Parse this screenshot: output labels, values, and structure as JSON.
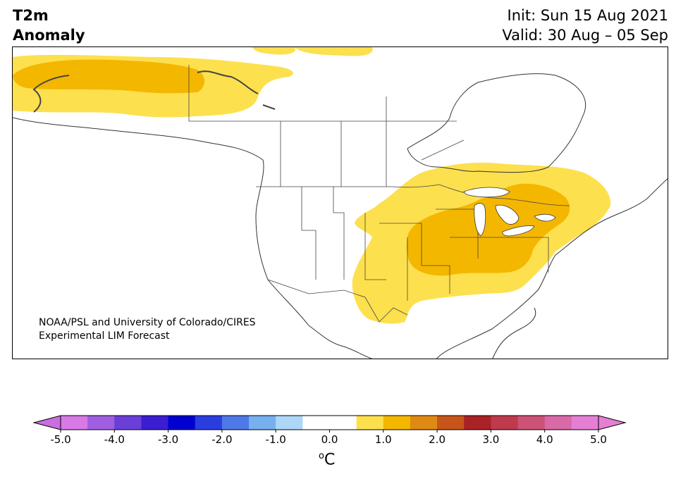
{
  "header": {
    "variable_line1": "T2m",
    "variable_line2": "Anomaly",
    "init_text": "Init: Sun 15 Aug 2021",
    "valid_text": "Valid: 30 Aug – 05 Sep"
  },
  "credit": {
    "line1": "NOAA/PSL and University of Colorado/CIRES",
    "line2": "Experimental LIM Forecast"
  },
  "colorbar": {
    "unit_label": "C",
    "unit_superscript": "o",
    "ticks": [
      "-5.0",
      "-4.0",
      "-3.0",
      "-2.0",
      "-1.0",
      "0.0",
      "1.0",
      "2.0",
      "3.0",
      "4.0",
      "5.0"
    ],
    "colors": [
      "#d77ae6",
      "#a05ee0",
      "#6a3fd8",
      "#3a1ed0",
      "#0000d0",
      "#2a3ee0",
      "#4f79e6",
      "#76b0ee",
      "#aed6f7",
      "#ffffff",
      "#ffffff",
      "#fde04e",
      "#f4b700",
      "#df8a14",
      "#c75519",
      "#a92225",
      "#be3a4c",
      "#cc5278",
      "#d96aa7",
      "#e57fd4"
    ],
    "under_color": "#c86ee0",
    "over_color": "#e57fd4",
    "range": [
      -5.0,
      5.0
    ],
    "step": 0.5
  },
  "map": {
    "region": "North America",
    "anomaly_levels": [
      {
        "range": "0.5 to 1.0",
        "color": "#fde04e"
      },
      {
        "range": "1.0 to 1.5",
        "color": "#f4b700"
      }
    ]
  }
}
